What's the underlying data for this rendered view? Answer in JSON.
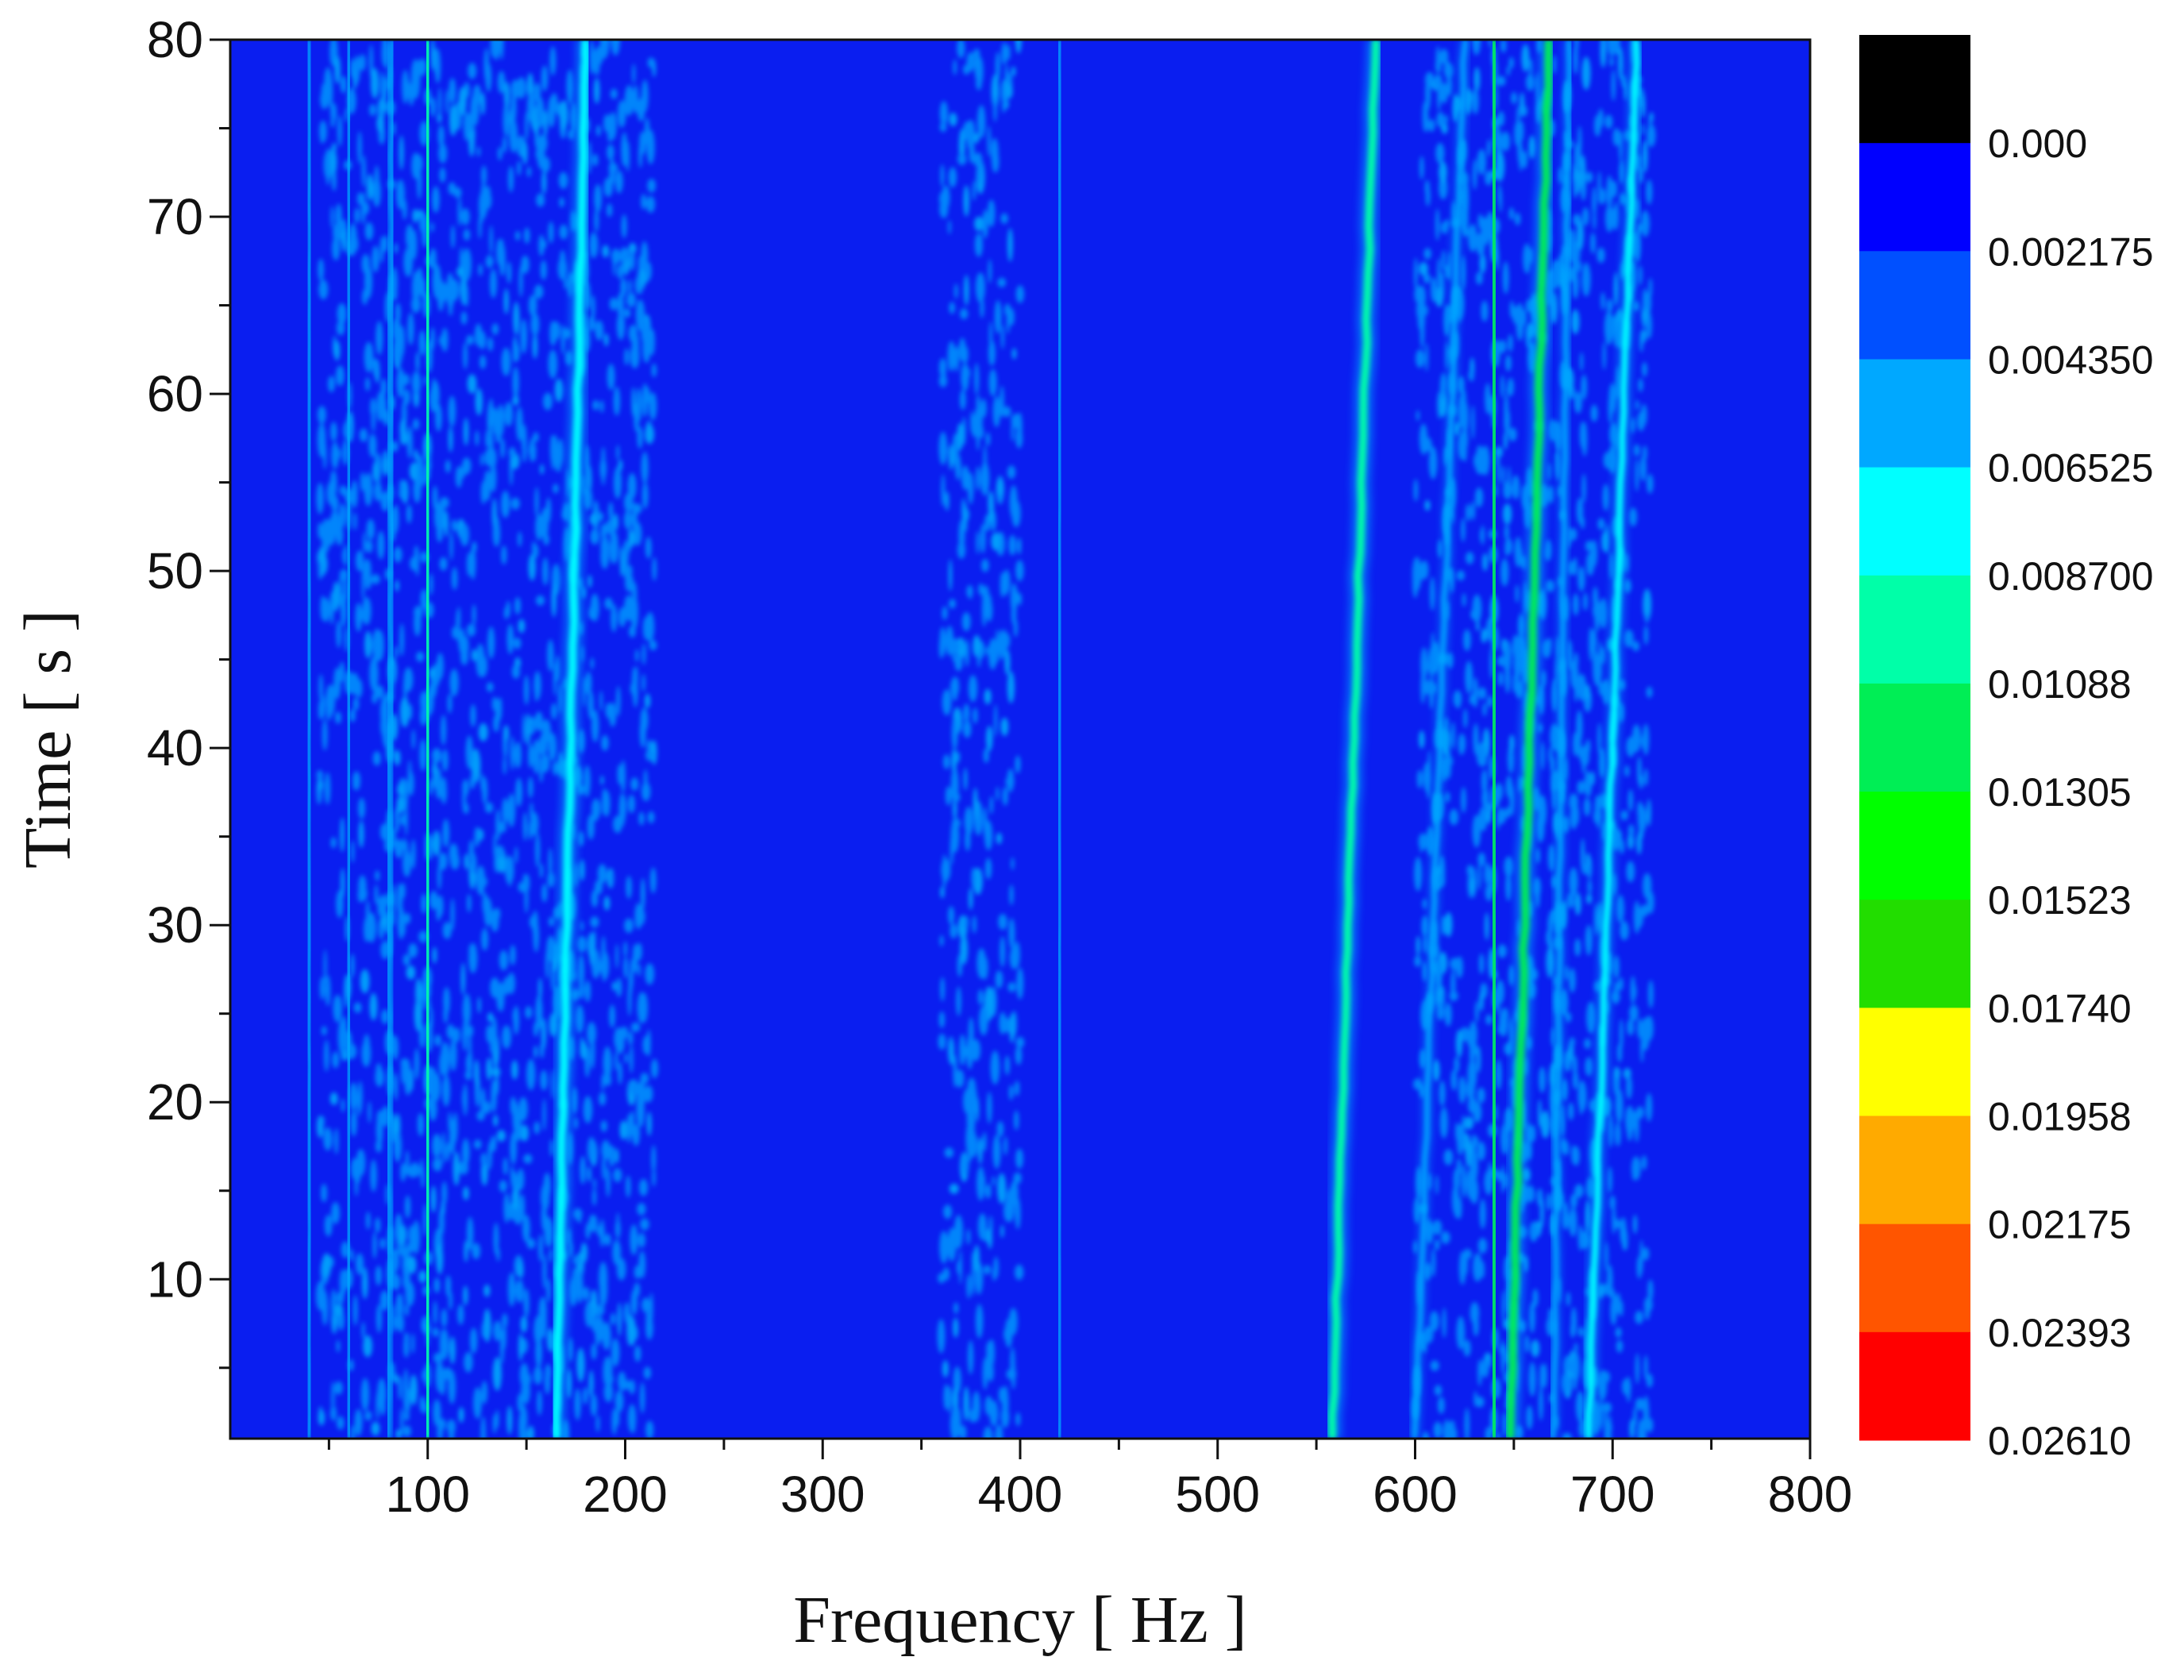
{
  "chart_data": {
    "type": "heatmap",
    "title": "",
    "xlabel": "Frequency [ Hz ]",
    "ylabel": "Time [ s ]",
    "xlim": [
      0,
      800
    ],
    "ylim": [
      1,
      80
    ],
    "x_ticks": [
      {
        "value": 100,
        "label": "100"
      },
      {
        "value": 200,
        "label": "200"
      },
      {
        "value": 300,
        "label": "300"
      },
      {
        "value": 400,
        "label": "400"
      },
      {
        "value": 500,
        "label": "500"
      },
      {
        "value": 600,
        "label": "600"
      },
      {
        "value": 700,
        "label": "700"
      },
      {
        "value": 800,
        "label": "800"
      }
    ],
    "y_ticks": [
      {
        "value": 10,
        "label": "10"
      },
      {
        "value": 20,
        "label": "20"
      },
      {
        "value": 30,
        "label": "30"
      },
      {
        "value": 40,
        "label": "40"
      },
      {
        "value": 50,
        "label": "50"
      },
      {
        "value": 60,
        "label": "60"
      },
      {
        "value": 70,
        "label": "70"
      },
      {
        "value": 80,
        "label": "80"
      }
    ],
    "background_color": "#0a1ef0",
    "colorbar": {
      "levels": [
        {
          "label": "0.000",
          "color": "#000000"
        },
        {
          "label": "0.002175",
          "color": "#0000ff"
        },
        {
          "label": "0.004350",
          "color": "#0050ff"
        },
        {
          "label": "0.006525",
          "color": "#00a8ff"
        },
        {
          "label": "0.008700",
          "color": "#00ffff"
        },
        {
          "label": "0.01088",
          "color": "#00ffa8"
        },
        {
          "label": "0.01305",
          "color": "#00ee55"
        },
        {
          "label": "0.01523",
          "color": "#00ff00"
        },
        {
          "label": "0.01740",
          "color": "#22dd00"
        },
        {
          "label": "0.01958",
          "color": "#ffff00"
        },
        {
          "label": "0.02175",
          "color": "#ffaa00"
        },
        {
          "label": "0.02393",
          "color": "#ff5500"
        },
        {
          "label": "0.02610",
          "color": "#ff0000"
        }
      ]
    },
    "ridges": [
      {
        "freq_start": 40,
        "freq_end": 40,
        "t_start": 1,
        "t_end": 80,
        "intensity": 0.00435,
        "width_hz": 2
      },
      {
        "freq_start": 60,
        "freq_end": 60,
        "t_start": 1,
        "t_end": 80,
        "intensity": 0.00435,
        "width_hz": 2
      },
      {
        "freq_start": 80,
        "freq_end": 82,
        "t_start": 1,
        "t_end": 80,
        "intensity": 0.00435,
        "width_hz": 2
      },
      {
        "freq_start": 100,
        "freq_end": 100,
        "t_start": 1,
        "t_end": 80,
        "intensity": 0.0087,
        "width_hz": 4
      },
      {
        "freq_start": 165,
        "freq_end": 180,
        "t_start": 1,
        "t_end": 80,
        "intensity": 0.006525,
        "width_hz": 4
      },
      {
        "freq_start": 420,
        "freq_end": 420,
        "t_start": 1,
        "t_end": 80,
        "intensity": 0.00435,
        "width_hz": 2
      },
      {
        "freq_start": 558,
        "freq_end": 580,
        "t_start": 1,
        "t_end": 80,
        "intensity": 0.0087,
        "width_hz": 4
      },
      {
        "freq_start": 600,
        "freq_end": 625,
        "t_start": 1,
        "t_end": 80,
        "intensity": 0.00435,
        "width_hz": 2
      },
      {
        "freq_start": 640,
        "freq_end": 640,
        "t_start": 1,
        "t_end": 80,
        "intensity": 0.01088,
        "width_hz": 4
      },
      {
        "freq_start": 648,
        "freq_end": 668,
        "t_start": 1,
        "t_end": 80,
        "intensity": 0.01088,
        "width_hz": 4
      },
      {
        "freq_start": 670,
        "freq_end": 678,
        "t_start": 1,
        "t_end": 80,
        "intensity": 0.00435,
        "width_hz": 2
      },
      {
        "freq_start": 688,
        "freq_end": 712,
        "t_start": 1,
        "t_end": 80,
        "intensity": 0.006525,
        "width_hz": 3
      }
    ],
    "noise_bands": [
      {
        "freq_min": 45,
        "freq_max": 215,
        "t_start": 1,
        "t_end": 80,
        "intensity": 0.00435
      },
      {
        "freq_min": 360,
        "freq_max": 400,
        "t_start": 1,
        "t_end": 80,
        "intensity": 0.00435
      },
      {
        "freq_min": 600,
        "freq_max": 720,
        "t_start": 1,
        "t_end": 80,
        "intensity": 0.00435
      }
    ]
  }
}
